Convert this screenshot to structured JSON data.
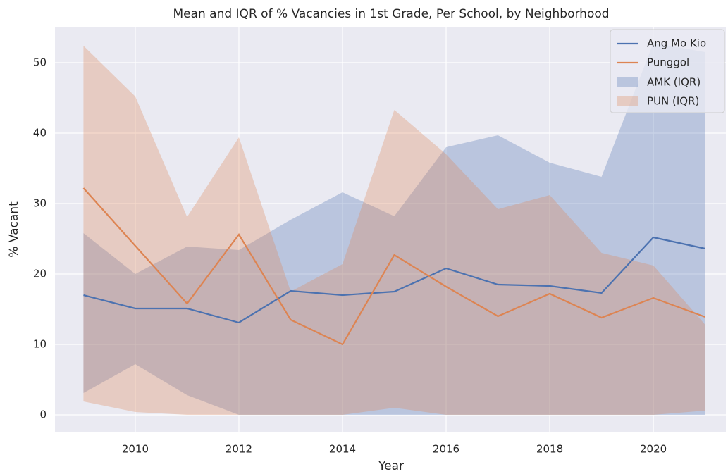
{
  "chart_data": {
    "type": "line",
    "title": "Mean and IQR of % Vacancies in 1st Grade, Per School, by Neighborhood",
    "xlabel": "Year",
    "ylabel": "% Vacant",
    "x": [
      2009,
      2010,
      2011,
      2012,
      2013,
      2014,
      2015,
      2016,
      2017,
      2018,
      2019,
      2020,
      2021
    ],
    "series": [
      {
        "name": "Ang Mo Kio",
        "color": "#4c72b0",
        "values": [
          17.0,
          15.1,
          15.1,
          13.1,
          17.6,
          17.0,
          17.5,
          20.8,
          18.5,
          18.3,
          17.3,
          25.2,
          23.6
        ]
      },
      {
        "name": "Punggol",
        "color": "#dd8452",
        "values": [
          32.2,
          24.0,
          15.8,
          25.6,
          13.5,
          10.0,
          22.7,
          18.2,
          14.0,
          17.2,
          13.8,
          16.6,
          13.9
        ]
      }
    ],
    "bands": [
      {
        "name": "AMK (IQR)",
        "color": "#4c72b0",
        "lower": [
          3.1,
          7.2,
          2.8,
          0,
          0,
          0,
          0,
          0,
          0,
          0,
          0,
          0,
          0
        ],
        "upper": [
          25.8,
          20.0,
          23.9,
          23.4,
          27.7,
          31.6,
          28.2,
          38.0,
          39.7,
          35.8,
          33.8,
          52.8,
          51.5
        ]
      },
      {
        "name": "PUN (IQR)",
        "color": "#dd8452",
        "lower": [
          1.9,
          0.4,
          0,
          0,
          0,
          0,
          1.0,
          0,
          0,
          0,
          0,
          0,
          0.6
        ],
        "upper": [
          52.4,
          45.2,
          28.1,
          39.4,
          17.5,
          21.4,
          43.3,
          37.0,
          29.2,
          31.2,
          23.0,
          21.2,
          12.8
        ]
      }
    ],
    "xlim": [
      2008.45,
      2021.4
    ],
    "ylim": [
      -2.4,
      55.1
    ],
    "xticks": [
      2010,
      2012,
      2014,
      2016,
      2018,
      2020
    ],
    "yticks": [
      0,
      10,
      20,
      30,
      40,
      50
    ],
    "grid": true,
    "legend": "upper right"
  }
}
